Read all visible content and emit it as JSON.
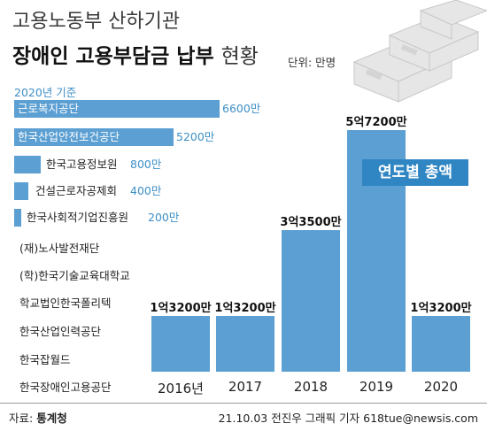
{
  "header": {
    "title_line1": "고용노동부 산하기관",
    "title_line2_bold": "장애인 고용부담금 납부",
    "title_line2_light": "현황",
    "unit": "단위: 만명"
  },
  "left_panel": {
    "year_label": "2020년 기준",
    "items": [
      {
        "name": "근로복지공단",
        "value": "6600만",
        "amount": 6600
      },
      {
        "name": "한국산업안전보건공단",
        "value": "5200만",
        "amount": 5200
      },
      {
        "name": "한국고용정보원",
        "value": "800만",
        "amount": 800
      },
      {
        "name": "건설근로자공제회",
        "value": "400만",
        "amount": 400
      },
      {
        "name": "한국사회적기업진흥원",
        "value": "200만",
        "amount": 200
      }
    ],
    "no_bar_items": [
      "(재)노사발전재단",
      "(학)한국기술교육대학교",
      "학교법인한국폴리텍",
      "한국산업인력공단",
      "한국잡월드",
      "한국장애인고용공단"
    ]
  },
  "badge": "연도별 총액",
  "chart_data": {
    "type": "bar",
    "categories": [
      "2016년",
      "2017",
      "2018",
      "2019",
      "2020"
    ],
    "values": [
      13200,
      13200,
      33500,
      57200,
      13200
    ],
    "data_labels": [
      "1억3200만",
      "1억3200만",
      "3억3500만",
      "5억7200만",
      "1억3200만"
    ],
    "ylim": [
      0,
      57200
    ]
  },
  "footer": {
    "source_prefix": "자료: ",
    "source_name": "통계청",
    "credit": "21.10.03 전진우 그래픽 기자 618tue@newsis.com"
  },
  "colors": {
    "bar": "#5b9fd3",
    "badge": "#2f86c3",
    "accent_text": "#3d8fc7"
  }
}
